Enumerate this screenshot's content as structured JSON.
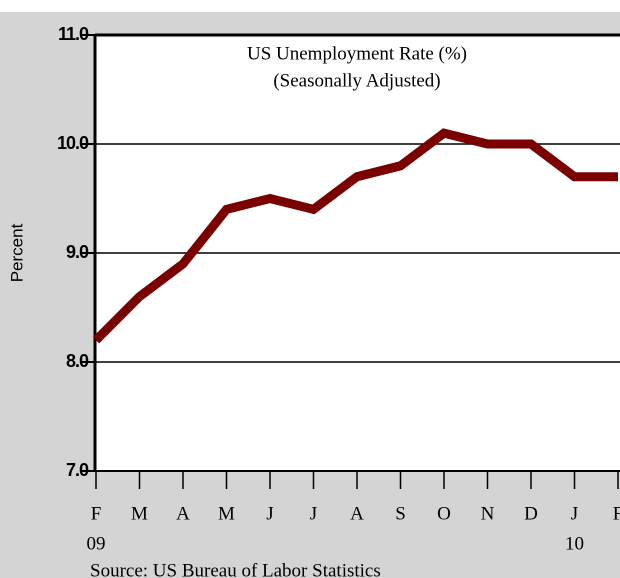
{
  "chart_data": {
    "type": "line",
    "title": "US Unemployment Rate (%)",
    "subtitle": "(Seasonally Adjusted)",
    "y_label": "Percent",
    "source": "Source: US Bureau of Labor Statistics",
    "categories": [
      "F",
      "M",
      "A",
      "M",
      "J",
      "J",
      "A",
      "S",
      "O",
      "N",
      "D",
      "J",
      "F"
    ],
    "year_labels": [
      "09",
      null,
      null,
      null,
      null,
      null,
      null,
      null,
      null,
      null,
      null,
      "10",
      null
    ],
    "series": [
      {
        "name": "US Unemployment Rate",
        "color": "#7a0000",
        "values": [
          8.2,
          8.6,
          8.9,
          9.4,
          9.5,
          9.4,
          9.7,
          9.8,
          10.1,
          10.0,
          10.0,
          9.7,
          9.7
        ]
      }
    ],
    "ylim": [
      7,
      11
    ],
    "yticks": [
      {
        "value": 7,
        "label": "7.0"
      },
      {
        "value": 8,
        "label": "8.0"
      },
      {
        "value": 9,
        "label": "9.0"
      },
      {
        "value": 10,
        "label": "10.0"
      },
      {
        "value": 11,
        "label": "11.0"
      }
    ],
    "grid": true
  }
}
